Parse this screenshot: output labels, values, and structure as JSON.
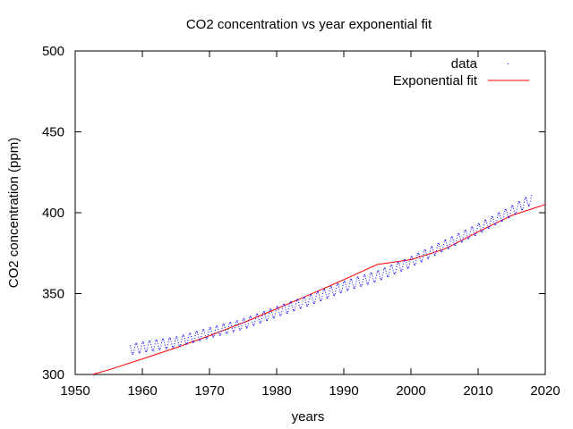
{
  "chart_data": {
    "type": "scatter",
    "title": "CO2 concentration vs year exponential fit",
    "xlabel": "years",
    "ylabel": "CO2 concentration (ppm)",
    "xlim": [
      1950,
      2020
    ],
    "ylim": [
      300,
      500
    ],
    "xticks": [
      "1950",
      "1960",
      "1970",
      "1980",
      "1990",
      "2000",
      "2010",
      "2020"
    ],
    "yticks": [
      "300",
      "350",
      "400",
      "450",
      "500"
    ],
    "grid": false,
    "legend_position": "top-right",
    "series": [
      {
        "name": "data",
        "kind": "points",
        "color": "#0000ff",
        "x_start": 1958.2,
        "x_end": 2018.0,
        "trend": [
          [
            1958,
            315.3
          ],
          [
            1960,
            316.9
          ],
          [
            1965,
            320.0
          ],
          [
            1970,
            325.7
          ],
          [
            1975,
            331.1
          ],
          [
            1980,
            338.7
          ],
          [
            1985,
            346.1
          ],
          [
            1990,
            354.4
          ],
          [
            1995,
            360.8
          ],
          [
            2000,
            369.6
          ],
          [
            2005,
            379.8
          ],
          [
            2010,
            389.9
          ],
          [
            2015,
            401.0
          ],
          [
            2018,
            408.5
          ]
        ],
        "seasonal_amplitude": 3.2
      },
      {
        "name": "Exponential fit",
        "kind": "line",
        "color": "#ff0000",
        "points": [
          [
            1950,
            297.0
          ],
          [
            1955,
            302.9
          ],
          [
            1960,
            309.6
          ],
          [
            1965,
            316.5
          ],
          [
            1970,
            324.0
          ],
          [
            1975,
            332.0
          ],
          [
            1980,
            340.6
          ],
          [
            1985,
            349.5
          ],
          [
            1990,
            358.6
          ],
          [
            1995,
            368.0
          ],
          [
            2000,
            371.0
          ],
          [
            2005,
            377.5
          ],
          [
            2010,
            388.2
          ],
          [
            2015,
            398.3
          ],
          [
            2020,
            405.0
          ]
        ]
      }
    ]
  }
}
